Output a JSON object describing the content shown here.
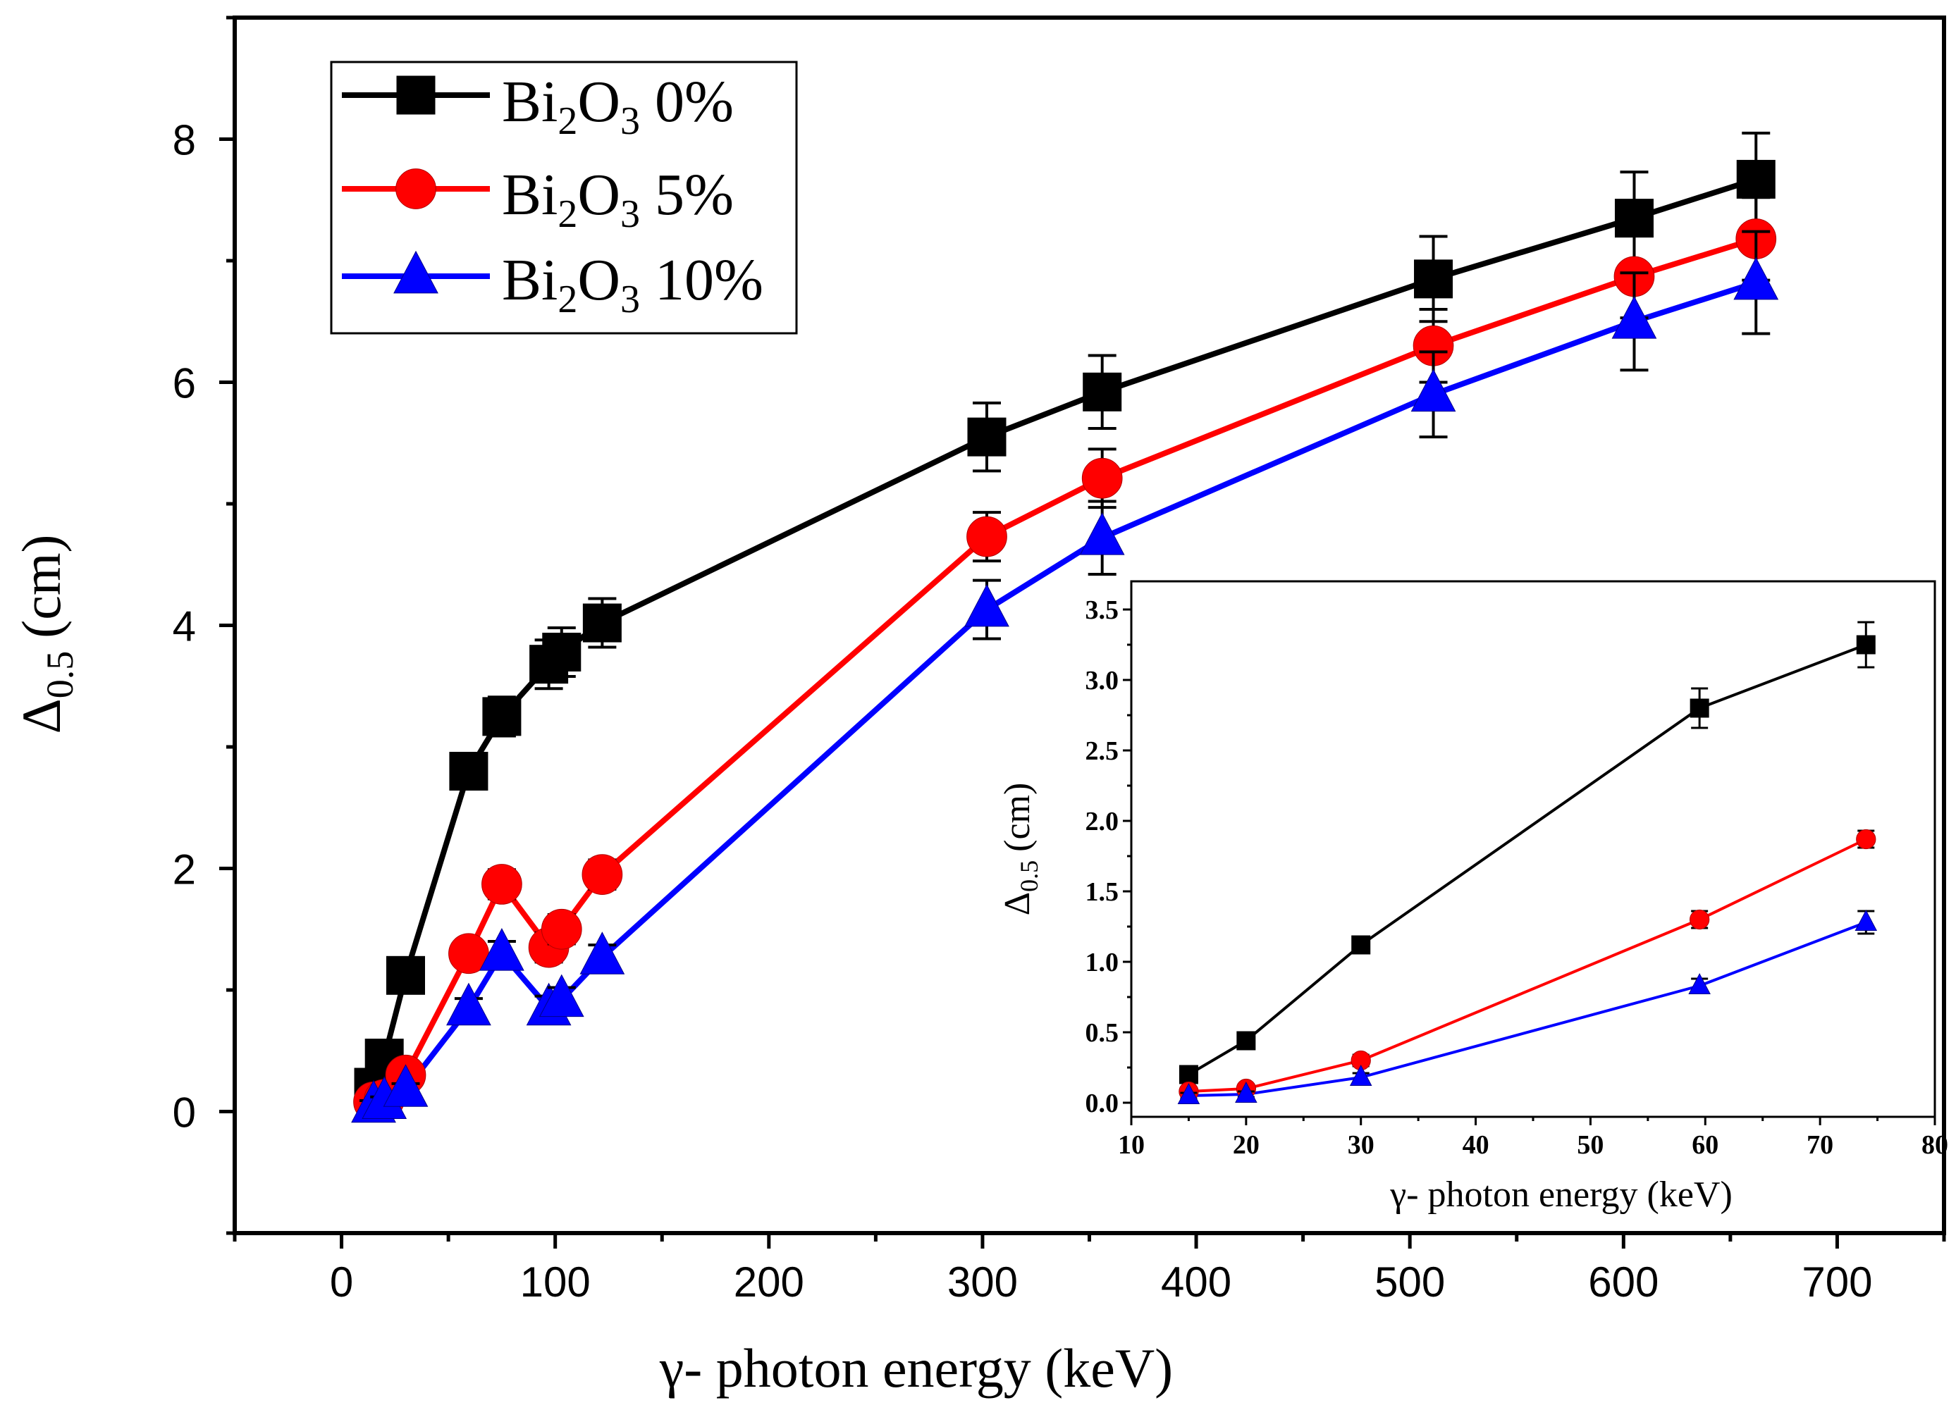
{
  "chart_data": [
    {
      "type": "line",
      "title": "",
      "xlabel": "γ- photon energy (keV)",
      "ylabel_symbol": "Δ",
      "ylabel_sub": "0.5",
      "ylabel_unit": "(cm)",
      "xlim": [
        -50,
        750
      ],
      "ylim": [
        -1,
        9
      ],
      "x_ticks": [
        0,
        100,
        200,
        300,
        400,
        500,
        600,
        700
      ],
      "y_ticks": [
        0,
        2,
        4,
        6,
        8
      ],
      "x_minor_step": 50,
      "y_minor_step": 1,
      "legend_position": "top-left",
      "series": [
        {
          "name_prefix": "Bi",
          "name_sub1": "2",
          "name_mid": "O",
          "name_sub2": "3",
          "name_suffix": " 0%",
          "color": "#000000",
          "marker": "square",
          "x": [
            15,
            20,
            30,
            59.5,
            75,
            97,
            103,
            122,
            302,
            356,
            511,
            605,
            662
          ],
          "y": [
            0.2,
            0.44,
            1.12,
            2.8,
            3.25,
            3.68,
            3.78,
            4.02,
            5.55,
            5.92,
            6.85,
            7.35,
            7.67
          ],
          "err": [
            0.06,
            0.06,
            0.08,
            0.12,
            0.16,
            0.2,
            0.2,
            0.2,
            0.28,
            0.3,
            0.35,
            0.38,
            0.38
          ]
        },
        {
          "name_prefix": "Bi",
          "name_sub1": "2",
          "name_mid": "O",
          "name_sub2": "3",
          "name_suffix": " 5%",
          "color": "#ff0000",
          "marker": "circle",
          "x": [
            15,
            20,
            30,
            59.5,
            75,
            97,
            103,
            122,
            302,
            356,
            511,
            605,
            662
          ],
          "y": [
            0.08,
            0.1,
            0.3,
            1.3,
            1.87,
            1.35,
            1.5,
            1.95,
            4.73,
            5.21,
            6.3,
            6.87,
            7.18
          ],
          "err": [
            0.04,
            0.04,
            0.06,
            0.1,
            0.12,
            0.12,
            0.12,
            0.12,
            0.2,
            0.24,
            0.3,
            0.34,
            0.34
          ]
        },
        {
          "name_prefix": "Bi",
          "name_sub1": "2",
          "name_mid": "O",
          "name_sub2": "3",
          "name_suffix": " 10%",
          "color": "#0000ff",
          "marker": "triangle",
          "x": [
            15,
            20,
            30,
            59.5,
            75,
            97,
            103,
            122,
            302,
            356,
            511,
            605,
            662
          ],
          "y": [
            0.05,
            0.08,
            0.18,
            0.85,
            1.3,
            0.85,
            0.92,
            1.27,
            4.13,
            4.72,
            5.9,
            6.5,
            6.82
          ],
          "err": [
            0.04,
            0.04,
            0.05,
            0.08,
            0.1,
            0.1,
            0.1,
            0.1,
            0.24,
            0.3,
            0.35,
            0.4,
            0.42
          ]
        }
      ]
    },
    {
      "type": "line",
      "title": "",
      "xlabel": "γ- photon energy (keV)",
      "ylabel_symbol": "Δ",
      "ylabel_sub": "0.5",
      "ylabel_unit": "(cm)",
      "xlim": [
        10,
        80
      ],
      "ylim": [
        -0.1,
        3.7
      ],
      "x_ticks": [
        10,
        20,
        30,
        40,
        50,
        60,
        70,
        80
      ],
      "y_ticks": [
        0.0,
        0.5,
        1.0,
        1.5,
        2.0,
        2.5,
        3.0,
        3.5
      ],
      "x_tick_labels": [
        "10",
        "20",
        "30",
        "40",
        "50",
        "60",
        "70",
        "80"
      ],
      "y_tick_labels": [
        "0.0",
        "0.5",
        "1.0",
        "1.5",
        "2.0",
        "2.5",
        "3.0",
        "3.5"
      ],
      "series": [
        {
          "color": "#000000",
          "marker": "square",
          "x": [
            15,
            20,
            30,
            59.5,
            74
          ],
          "y": [
            0.2,
            0.44,
            1.12,
            2.8,
            3.25
          ],
          "err": [
            0.04,
            0.04,
            0.05,
            0.14,
            0.16
          ]
        },
        {
          "color": "#ff0000",
          "marker": "circle",
          "x": [
            15,
            20,
            30,
            59.5,
            74
          ],
          "y": [
            0.08,
            0.1,
            0.3,
            1.3,
            1.87
          ],
          "err": [
            0.03,
            0.03,
            0.04,
            0.06,
            0.06
          ]
        },
        {
          "color": "#0000ff",
          "marker": "triangle",
          "x": [
            15,
            20,
            30,
            59.5,
            74
          ],
          "y": [
            0.05,
            0.06,
            0.18,
            0.83,
            1.28
          ],
          "err": [
            0.02,
            0.02,
            0.03,
            0.05,
            0.08
          ]
        }
      ]
    }
  ]
}
